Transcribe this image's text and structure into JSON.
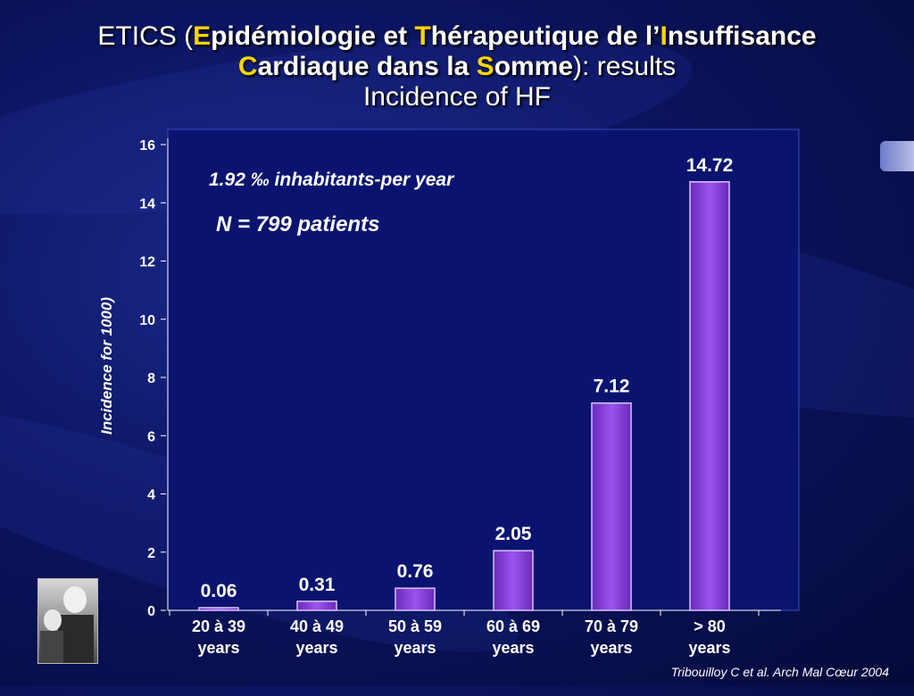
{
  "title": {
    "line1_pre": "ETICS (",
    "e": "E",
    "w1": "pidémiologie et ",
    "t": "T",
    "w2": "hérapeutique de l’",
    "i": "I",
    "w3": "nsuffisance",
    "c": "C",
    "w4": "ardiaque dans la ",
    "s": "S",
    "w5": "omme",
    "line2_post": "): results",
    "line3": "Incidence of HF"
  },
  "annotations": {
    "rate": "1.92 ‰  inhabitants-per year",
    "n": "N = 799 patients"
  },
  "source": "Tribouilloy C et al. Arch Mal Cœur 2004",
  "chart_data": {
    "type": "bar",
    "ylabel": "Incidence for 1000)",
    "ylim": [
      0,
      16
    ],
    "yticks": [
      0,
      2,
      4,
      6,
      8,
      10,
      12,
      14,
      16
    ],
    "categories": [
      [
        "20 à 39",
        "years"
      ],
      [
        "40 à 49",
        "years"
      ],
      [
        "50 à 59",
        "years"
      ],
      [
        "60 à 69",
        "years"
      ],
      [
        "70 à 79",
        "years"
      ],
      [
        "> 80",
        "years"
      ]
    ],
    "values": [
      0.06,
      0.31,
      0.76,
      2.05,
      7.12,
      14.72
    ],
    "labels": [
      "0.06",
      "0.31",
      "0.76",
      "2.05",
      "7.12",
      "14.72"
    ],
    "bar_color": "#9a55f0",
    "plot_bg": "#0a1470"
  }
}
